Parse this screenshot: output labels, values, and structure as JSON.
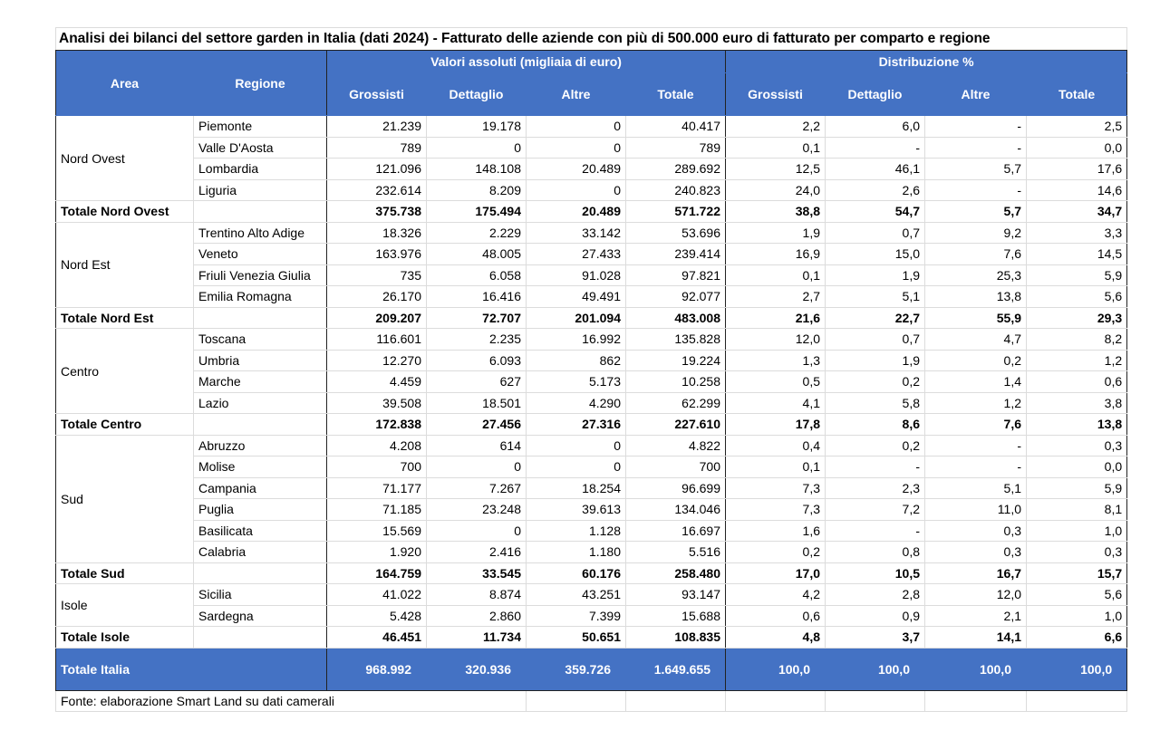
{
  "title": "Analisi dei bilanci del settore garden in Italia (dati 2024) - Fatturato delle aziende con più di 500.000 euro di fatturato per comparto e regione",
  "headers": {
    "area": "Area",
    "regione": "Regione",
    "group_abs": "Valori assoluti (migliaia di euro)",
    "group_pct": "Distribuzione %",
    "cols": [
      "Grossisti",
      "Dettaglio",
      "Altre",
      "Totale",
      "Grossisti",
      "Dettaglio",
      "Altre",
      "Totale"
    ]
  },
  "header_color": "#4472C4",
  "groups": [
    {
      "area": "Nord Ovest",
      "regions": [
        {
          "name": "Piemonte",
          "values": [
            "21.239",
            "19.178",
            "0",
            "40.417",
            "2,2",
            "6,0",
            "-",
            "2,5"
          ]
        },
        {
          "name": "Valle D'Aosta",
          "values": [
            "789",
            "0",
            "0",
            "789",
            "0,1",
            "-",
            "-",
            "0,0"
          ]
        },
        {
          "name": "Lombardia",
          "values": [
            "121.096",
            "148.108",
            "20.489",
            "289.692",
            "12,5",
            "46,1",
            "5,7",
            "17,6"
          ]
        },
        {
          "name": "Liguria",
          "values": [
            "232.614",
            "8.209",
            "0",
            "240.823",
            "24,0",
            "2,6",
            "-",
            "14,6"
          ]
        }
      ],
      "total": {
        "label": "Totale Nord Ovest",
        "values": [
          "375.738",
          "175.494",
          "20.489",
          "571.722",
          "38,8",
          "54,7",
          "5,7",
          "34,7"
        ]
      }
    },
    {
      "area": "Nord Est",
      "regions": [
        {
          "name": "Trentino Alto Adige",
          "values": [
            "18.326",
            "2.229",
            "33.142",
            "53.696",
            "1,9",
            "0,7",
            "9,2",
            "3,3"
          ]
        },
        {
          "name": "Veneto",
          "values": [
            "163.976",
            "48.005",
            "27.433",
            "239.414",
            "16,9",
            "15,0",
            "7,6",
            "14,5"
          ]
        },
        {
          "name": "Friuli Venezia Giulia",
          "values": [
            "735",
            "6.058",
            "91.028",
            "97.821",
            "0,1",
            "1,9",
            "25,3",
            "5,9"
          ]
        },
        {
          "name": "Emilia Romagna",
          "values": [
            "26.170",
            "16.416",
            "49.491",
            "92.077",
            "2,7",
            "5,1",
            "13,8",
            "5,6"
          ]
        }
      ],
      "total": {
        "label": "Totale Nord Est",
        "values": [
          "209.207",
          "72.707",
          "201.094",
          "483.008",
          "21,6",
          "22,7",
          "55,9",
          "29,3"
        ]
      }
    },
    {
      "area": "Centro",
      "regions": [
        {
          "name": "Toscana",
          "values": [
            "116.601",
            "2.235",
            "16.992",
            "135.828",
            "12,0",
            "0,7",
            "4,7",
            "8,2"
          ]
        },
        {
          "name": "Umbria",
          "values": [
            "12.270",
            "6.093",
            "862",
            "19.224",
            "1,3",
            "1,9",
            "0,2",
            "1,2"
          ]
        },
        {
          "name": "Marche",
          "values": [
            "4.459",
            "627",
            "5.173",
            "10.258",
            "0,5",
            "0,2",
            "1,4",
            "0,6"
          ]
        },
        {
          "name": "Lazio",
          "values": [
            "39.508",
            "18.501",
            "4.290",
            "62.299",
            "4,1",
            "5,8",
            "1,2",
            "3,8"
          ]
        }
      ],
      "total": {
        "label": "Totale Centro",
        "values": [
          "172.838",
          "27.456",
          "27.316",
          "227.610",
          "17,8",
          "8,6",
          "7,6",
          "13,8"
        ]
      }
    },
    {
      "area": "Sud",
      "regions": [
        {
          "name": "Abruzzo",
          "values": [
            "4.208",
            "614",
            "0",
            "4.822",
            "0,4",
            "0,2",
            "-",
            "0,3"
          ]
        },
        {
          "name": "Molise",
          "values": [
            "700",
            "0",
            "0",
            "700",
            "0,1",
            "-",
            "-",
            "0,0"
          ]
        },
        {
          "name": "Campania",
          "values": [
            "71.177",
            "7.267",
            "18.254",
            "96.699",
            "7,3",
            "2,3",
            "5,1",
            "5,9"
          ]
        },
        {
          "name": "Puglia",
          "values": [
            "71.185",
            "23.248",
            "39.613",
            "134.046",
            "7,3",
            "7,2",
            "11,0",
            "8,1"
          ]
        },
        {
          "name": "Basilicata",
          "values": [
            "15.569",
            "0",
            "1.128",
            "16.697",
            "1,6",
            "-",
            "0,3",
            "1,0"
          ]
        },
        {
          "name": "Calabria",
          "values": [
            "1.920",
            "2.416",
            "1.180",
            "5.516",
            "0,2",
            "0,8",
            "0,3",
            "0,3"
          ]
        }
      ],
      "total": {
        "label": "Totale Sud",
        "values": [
          "164.759",
          "33.545",
          "60.176",
          "258.480",
          "17,0",
          "10,5",
          "16,7",
          "15,7"
        ]
      }
    },
    {
      "area": "Isole",
      "regions": [
        {
          "name": "Sicilia",
          "values": [
            "41.022",
            "8.874",
            "43.251",
            "93.147",
            "4,2",
            "2,8",
            "12,0",
            "5,6"
          ]
        },
        {
          "name": "Sardegna",
          "values": [
            "5.428",
            "2.860",
            "7.399",
            "15.688",
            "0,6",
            "0,9",
            "2,1",
            "1,0"
          ]
        }
      ],
      "total": {
        "label": "Totale Isole",
        "values": [
          "46.451",
          "11.734",
          "50.651",
          "108.835",
          "4,8",
          "3,7",
          "14,1",
          "6,6"
        ]
      }
    }
  ],
  "grand_total": {
    "label": "Totale Italia",
    "values": [
      "968.992",
      "320.936",
      "359.726",
      "1.649.655",
      "100,0",
      "100,0",
      "100,0",
      "100,0"
    ]
  },
  "source": "Fonte: elaborazione Smart Land su dati camerali"
}
